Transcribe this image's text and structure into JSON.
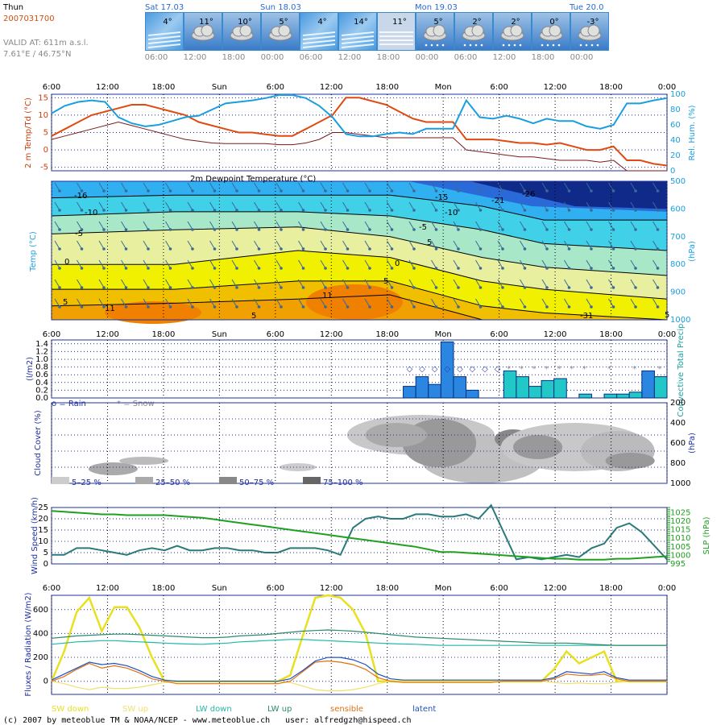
{
  "header": {
    "location": "Thun",
    "run_id": "2007031700",
    "valid_at": "VALID AT: 611m a.s.l.",
    "coords": "7.61°E / 46.75°N"
  },
  "forecast_strip": {
    "days": [
      "Sat 17.03",
      "Sun 18.03",
      "Mon 19.03",
      "Tue 20.0"
    ],
    "temps": [
      "4°",
      "11°",
      "10°",
      "5°",
      "4°",
      "14°",
      "11°",
      "5°",
      "2°",
      "2°",
      "0°",
      "-3°"
    ],
    "icons": [
      "haze-icon",
      "cloud-sun-icon",
      "cloud-icon",
      "cloud-sun-icon",
      "haze-icon",
      "haze-icon",
      "fog-icon",
      "snow-cloud-icon",
      "snow-cloud-icon",
      "snow-cloud-icon",
      "snow-cloud-icon",
      "snow-cloud-icon"
    ],
    "times": [
      "06:00",
      "12:00",
      "18:00",
      "00:00",
      "06:00",
      "12:00",
      "18:00",
      "00:00",
      "06:00",
      "12:00",
      "18:00",
      "00:00"
    ]
  },
  "time_axis": [
    "6:00",
    "12:00",
    "18:00",
    "Sun",
    "6:00",
    "12:00",
    "18:00",
    "Mon",
    "6:00",
    "12:00",
    "18:00",
    "0:00"
  ],
  "chart_data": [
    {
      "type": "line",
      "panel": "temperature",
      "ylabel": "2 m Temp/Td (°C)",
      "y2label": "Rel. Hum. (%)",
      "ylim": [
        -6,
        16
      ],
      "yticks": [
        -5,
        0,
        5,
        10,
        15
      ],
      "y2lim": [
        0,
        100
      ],
      "y2ticks": [
        0,
        20,
        40,
        60,
        80,
        100
      ],
      "series": [
        {
          "name": "",
          "color": "#e04a10",
          "axis": "left",
          "values": [
            4,
            6,
            8,
            10,
            11,
            12,
            13,
            13,
            12,
            11,
            10,
            8,
            7,
            6,
            5,
            5,
            4.5,
            4,
            4,
            6,
            8,
            10,
            15,
            15,
            14,
            13,
            11,
            9,
            8,
            8,
            8,
            3,
            3,
            3,
            2.5,
            2,
            2,
            1.5,
            2,
            1,
            0,
            0,
            1,
            -3,
            -3,
            -4,
            -4.5
          ]
        },
        {
          "name": "",
          "color": "#7a1a1a",
          "axis": "left",
          "values": [
            3,
            4,
            5,
            6,
            7,
            8,
            7,
            6,
            5,
            4,
            3,
            2.5,
            2,
            1.8,
            1.8,
            1.8,
            1.8,
            1.5,
            1.5,
            2,
            3,
            5,
            5,
            4.5,
            4,
            3.5,
            3.5,
            3.5,
            3.5,
            3.5,
            3.5,
            0,
            -0.5,
            -1,
            -1.5,
            -2,
            -2,
            -2.5,
            -3,
            -3,
            -3,
            -3.5,
            -3,
            -6,
            -6,
            -6,
            -6
          ]
        },
        {
          "name": "",
          "color": "#1a9ee0",
          "axis": "right",
          "values": [
            75,
            85,
            90,
            92,
            90,
            70,
            62,
            58,
            60,
            65,
            70,
            72,
            80,
            88,
            90,
            92,
            95,
            99,
            99,
            95,
            85,
            70,
            48,
            45,
            45,
            48,
            50,
            48,
            55,
            55,
            55,
            92,
            70,
            68,
            72,
            68,
            62,
            68,
            65,
            65,
            58,
            55,
            60,
            88,
            88,
            92,
            95
          ]
        }
      ]
    },
    {
      "type": "heatmap",
      "panel": "upper-air-temperature",
      "title": "2m Dewpoint Temperature (°C)",
      "ylabel": "Temp (°C)",
      "y2label": "(hPa)",
      "y2ticks": [
        500,
        600,
        700,
        800,
        900,
        1000
      ],
      "contour_labels": [
        "-16",
        "-10",
        "-5",
        "0",
        "5",
        "11",
        "5",
        "11",
        "5",
        "0",
        "5",
        "-5",
        "-10",
        "-15",
        "-21",
        "-26",
        "-31",
        "5"
      ]
    },
    {
      "type": "bar",
      "panel": "precipitation",
      "ylabel": "(l/m2)",
      "y2label": "Convective Total Precip.",
      "ylim": [
        0,
        1.5
      ],
      "yticks": [
        "0.0",
        "0.2",
        "0.4",
        "0.6",
        "0.8",
        "1.0",
        "1.2",
        "1.4"
      ],
      "legend": [
        "o = Rain",
        "* = Snow"
      ],
      "series": [
        {
          "name": "",
          "color": "#2a86e0",
          "values": [
            0,
            0,
            0,
            0,
            0,
            0,
            0,
            0,
            0,
            0,
            0,
            0,
            0,
            0,
            0,
            0,
            0,
            0,
            0,
            0,
            0,
            0,
            0,
            0,
            0,
            0,
            0,
            0,
            0.3,
            0.55,
            0.35,
            1.45,
            0.55,
            0.2,
            0,
            0,
            0,
            0,
            0,
            0,
            0,
            0,
            0,
            0,
            0,
            0,
            0,
            0.7,
            0.3
          ]
        },
        {
          "name": "",
          "color": "#22c8c8",
          "values": [
            0,
            0,
            0,
            0,
            0,
            0,
            0,
            0,
            0,
            0,
            0,
            0,
            0,
            0,
            0,
            0,
            0,
            0,
            0,
            0,
            0,
            0,
            0,
            0,
            0,
            0,
            0,
            0,
            0,
            0,
            0,
            0,
            0,
            0,
            0,
            0,
            0.7,
            0.55,
            0.3,
            0.45,
            0.5,
            0,
            0.1,
            0,
            0.1,
            0.1,
            0.15,
            0,
            0.55
          ]
        }
      ]
    },
    {
      "type": "heatmap",
      "panel": "cloud-cover",
      "ylabel": "Cloud Cover (%)",
      "y2label": "(hPa)",
      "y2ticks": [
        200,
        400,
        600,
        800,
        1000
      ],
      "legend": [
        "5–25 %",
        "25–50 %",
        "50–75 %",
        "75–100 %"
      ]
    },
    {
      "type": "line",
      "panel": "wind-pressure",
      "ylabel": "Wind Speed (km/h)",
      "y2label": "SLP (hPa)",
      "ylim": [
        0,
        25
      ],
      "yticks": [
        0,
        5,
        10,
        15,
        20,
        25
      ],
      "y2lim": [
        995,
        1028
      ],
      "y2ticks": [
        995,
        1000,
        1005,
        1010,
        1015,
        1020,
        1025
      ],
      "series": [
        {
          "name": "",
          "color": "#2a7a7a",
          "axis": "left",
          "values": [
            4,
            4,
            7,
            7,
            6,
            5,
            4,
            6,
            7,
            6,
            8,
            6,
            6,
            7,
            7,
            6,
            6,
            5,
            5,
            7,
            7,
            7,
            6,
            4,
            16,
            20,
            21,
            20,
            20,
            22,
            22,
            21,
            21,
            22,
            20,
            26,
            14,
            2,
            3,
            2,
            3,
            4,
            3,
            7,
            9,
            16,
            18,
            14,
            8,
            2
          ]
        },
        {
          "name": "",
          "color": "#1fa01f",
          "axis": "right",
          "values": [
            1026,
            1025.5,
            1025,
            1024.5,
            1024,
            1024,
            1023.5,
            1023.5,
            1023.5,
            1023.5,
            1023,
            1022.5,
            1022,
            1021,
            1020,
            1019,
            1018,
            1017,
            1016,
            1015,
            1014,
            1013,
            1012,
            1011,
            1010,
            1009,
            1008,
            1007,
            1006,
            1005,
            1003.5,
            1002,
            1002,
            1001.5,
            1001,
            1000.5,
            1000,
            999.5,
            999,
            998.5,
            998,
            998,
            997.5,
            997.5,
            997.5,
            998,
            998,
            998.5,
            999,
            999.5
          ]
        }
      ]
    },
    {
      "type": "line",
      "panel": "fluxes",
      "ylabel": "Fluxes / Radiation (W/m2)",
      "ylim": [
        -110,
        720
      ],
      "yticks": [
        0,
        200,
        400,
        600
      ],
      "legend": [
        "SW down",
        "SW up",
        "LW down",
        "LW up",
        "sensible",
        "latent"
      ],
      "series": [
        {
          "name": "SW down",
          "color": "#e8e020",
          "values": [
            0,
            250,
            580,
            700,
            420,
            620,
            620,
            450,
            200,
            0,
            0,
            0,
            0,
            0,
            0,
            0,
            0,
            0,
            0,
            50,
            380,
            700,
            720,
            700,
            600,
            400,
            0,
            0,
            0,
            0,
            0,
            0,
            0,
            0,
            0,
            0,
            0,
            0,
            0,
            0,
            100,
            250,
            150,
            200,
            250,
            0,
            0,
            0,
            0,
            0
          ]
        },
        {
          "name": "SW up",
          "color": "#f0e070",
          "values": [
            0,
            -20,
            -50,
            -70,
            -50,
            -60,
            -60,
            -50,
            -30,
            -10,
            0,
            0,
            0,
            0,
            0,
            0,
            0,
            0,
            0,
            -10,
            -40,
            -70,
            -80,
            -80,
            -70,
            -50,
            -20,
            0,
            0,
            0,
            0,
            0,
            0,
            0,
            0,
            0,
            0,
            0,
            0,
            0,
            -10,
            -20,
            -15,
            -20,
            -20,
            -10,
            0,
            0,
            0,
            0
          ]
        },
        {
          "name": "LW down",
          "color": "#20b8a8",
          "values": [
            310,
            320,
            330,
            335,
            340,
            340,
            335,
            330,
            325,
            320,
            315,
            312,
            310,
            315,
            320,
            330,
            335,
            340,
            345,
            350,
            350,
            345,
            340,
            335,
            330,
            325,
            320,
            315,
            312,
            310,
            305,
            300,
            300,
            300,
            300,
            300,
            300,
            300,
            300,
            300,
            300,
            300,
            300,
            300,
            300,
            300,
            300,
            300,
            300,
            300
          ]
        },
        {
          "name": "LW up",
          "color": "#2a8a6a",
          "values": [
            360,
            370,
            380,
            385,
            390,
            395,
            395,
            390,
            385,
            380,
            375,
            370,
            365,
            365,
            370,
            380,
            385,
            390,
            400,
            410,
            420,
            425,
            430,
            425,
            420,
            410,
            400,
            390,
            380,
            370,
            365,
            360,
            355,
            350,
            345,
            340,
            335,
            330,
            325,
            320,
            320,
            320,
            315,
            310,
            305,
            300,
            300,
            300,
            300,
            300
          ]
        },
        {
          "name": "sensible",
          "color": "#e07010",
          "values": [
            0,
            40,
            100,
            150,
            110,
            130,
            110,
            70,
            20,
            0,
            -20,
            -20,
            -20,
            -20,
            -20,
            -20,
            -20,
            -20,
            -20,
            0,
            80,
            160,
            170,
            160,
            140,
            100,
            30,
            0,
            -10,
            -10,
            -10,
            -10,
            -10,
            -10,
            -10,
            -10,
            0,
            0,
            0,
            0,
            20,
            60,
            50,
            50,
            60,
            20,
            0,
            0,
            0,
            0
          ]
        },
        {
          "name": "latent",
          "color": "#2050c0",
          "values": [
            10,
            60,
            110,
            160,
            140,
            150,
            130,
            90,
            40,
            10,
            0,
            0,
            0,
            0,
            0,
            0,
            0,
            0,
            0,
            20,
            90,
            170,
            200,
            200,
            180,
            140,
            60,
            20,
            10,
            10,
            10,
            10,
            10,
            10,
            10,
            10,
            10,
            10,
            10,
            10,
            30,
            80,
            70,
            60,
            80,
            30,
            10,
            10,
            10,
            10
          ]
        }
      ]
    }
  ],
  "footer": {
    "copyright": "(c) 2007 by meteoblue TM & NOAA/NCEP - www.meteoblue.ch",
    "user": "user: alfredgzh@hispeed.ch"
  },
  "colors": {
    "accent_orange": "#d05010",
    "humidity_blue": "#1a9ee0",
    "strip_blue": "#3a8ad0"
  }
}
